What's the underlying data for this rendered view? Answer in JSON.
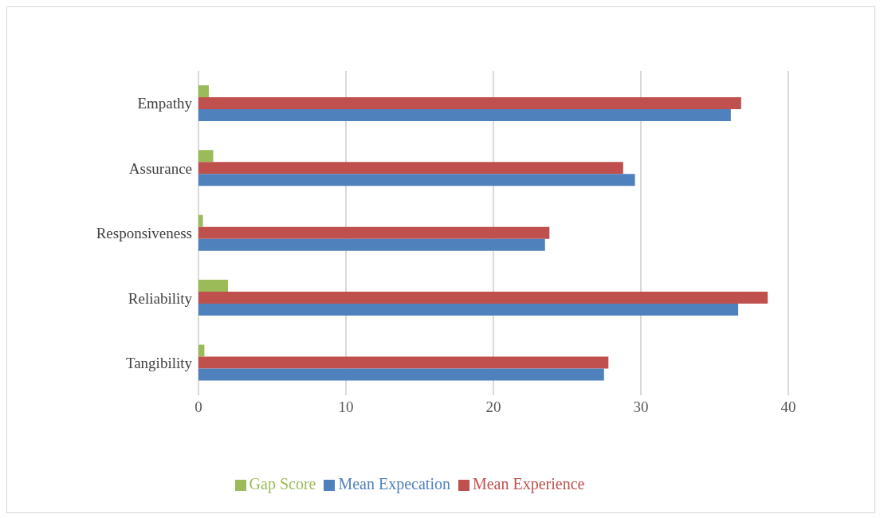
{
  "chart_data": {
    "type": "bar",
    "orientation": "horizontal",
    "categories": [
      "Empathy",
      "Assurance",
      "Responsiveness",
      "Reliability",
      "Tangibility"
    ],
    "series": [
      {
        "name": "Gap Score",
        "color": "#9bbb59",
        "values": [
          0.7,
          1.0,
          0.3,
          2.0,
          0.4
        ]
      },
      {
        "name": "Mean Experience",
        "color": "#c0504d",
        "values": [
          36.8,
          28.8,
          23.8,
          38.6,
          27.8
        ]
      },
      {
        "name": "Mean Expecation",
        "color": "#4f81bd",
        "values": [
          36.1,
          29.6,
          23.5,
          36.6,
          27.5
        ]
      }
    ],
    "xlim": [
      0,
      40
    ],
    "xticks": [
      0,
      10,
      20,
      30,
      40
    ],
    "grid": "x",
    "legend": "bottom"
  }
}
